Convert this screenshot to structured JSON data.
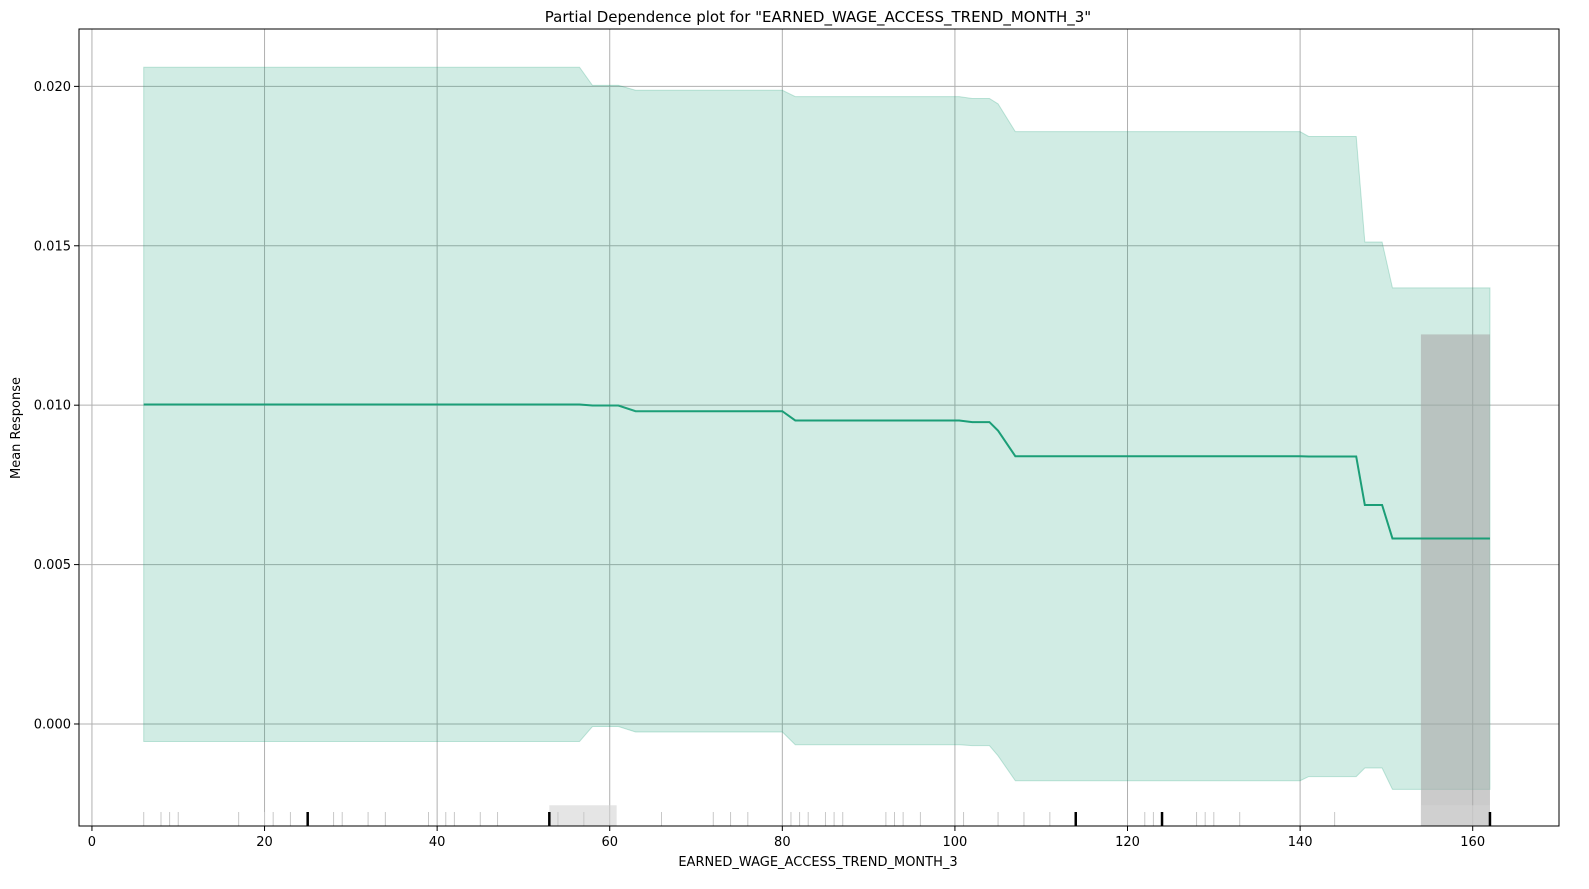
{
  "chart_data": {
    "type": "line",
    "title": "Partial Dependence plot for \"EARNED_WAGE_ACCESS_TREND_MONTH_3\"",
    "xlabel": "EARNED_WAGE_ACCESS_TREND_MONTH_3",
    "ylabel": "Mean Response",
    "xlim": [
      -1.5,
      170
    ],
    "ylim": [
      -0.0032,
      0.0218
    ],
    "x_ticks": [
      0,
      20,
      40,
      60,
      80,
      100,
      120,
      140,
      160
    ],
    "x_tick_labels": [
      "0",
      "20",
      "40",
      "60",
      "80",
      "100",
      "120",
      "140",
      "160"
    ],
    "y_ticks": [
      0.0,
      0.005,
      0.01,
      0.015,
      0.02
    ],
    "y_tick_labels": [
      "0.000",
      "0.005",
      "0.010",
      "0.015",
      "0.020"
    ],
    "grid": true,
    "line_color": "#1b9e77",
    "band_color": "#1b9e77",
    "series": [
      {
        "x": [
          6,
          56.5,
          58,
          61,
          63,
          80,
          81.5,
          100.5,
          102,
          104,
          105,
          107,
          140,
          141,
          146.5,
          147.5,
          149.5,
          150.7,
          162
        ],
        "mean": [
          0.01002,
          0.01002,
          0.00999,
          0.00999,
          0.00981,
          0.00981,
          0.00952,
          0.00952,
          0.00947,
          0.00947,
          0.0092,
          0.0084,
          0.0084,
          0.00839,
          0.00839,
          0.00687,
          0.00687,
          0.00582,
          0.00582
        ],
        "upper": [
          0.0206,
          0.0206,
          0.02003,
          0.02003,
          0.01988,
          0.01988,
          0.01968,
          0.01968,
          0.01962,
          0.01962,
          0.01945,
          0.01858,
          0.01858,
          0.01843,
          0.01843,
          0.01512,
          0.01512,
          0.01368,
          0.01368
        ],
        "lower": [
          -0.00055,
          -0.00055,
          -8e-05,
          -8e-05,
          -0.00025,
          -0.00025,
          -0.00065,
          -0.00065,
          -0.00068,
          -0.00068,
          -0.001,
          -0.00178,
          -0.00178,
          -0.00165,
          -0.00165,
          -0.00138,
          -0.00138,
          -0.00205,
          -0.00205
        ]
      }
    ],
    "highlight_regions": [
      {
        "x_range": [
          154,
          162
        ],
        "y_range": [
          -0.0032,
          0.01222
        ],
        "color": "#a9a9a9"
      },
      {
        "x_range": [
          53,
          60.8
        ],
        "y_range": [
          -0.0032,
          -0.00255
        ],
        "color": "#d3d3d3"
      },
      {
        "x_range": [
          154,
          162
        ],
        "y_range": [
          -0.0032,
          -0.00255
        ],
        "color": "#d3d3d3"
      }
    ],
    "rug_x": [
      6,
      8,
      9,
      10,
      17,
      20,
      21,
      23,
      25,
      28,
      29,
      32,
      34,
      39,
      41,
      42,
      45,
      47,
      53,
      54,
      57,
      66,
      72,
      74,
      76,
      81,
      82,
      83,
      85,
      86,
      87,
      92,
      93,
      94,
      96,
      101,
      105,
      108,
      111,
      114,
      122,
      123,
      124,
      128,
      129,
      130,
      133,
      144,
      162
    ],
    "rug_emphasis": [
      25,
      53,
      114,
      124,
      162
    ]
  }
}
